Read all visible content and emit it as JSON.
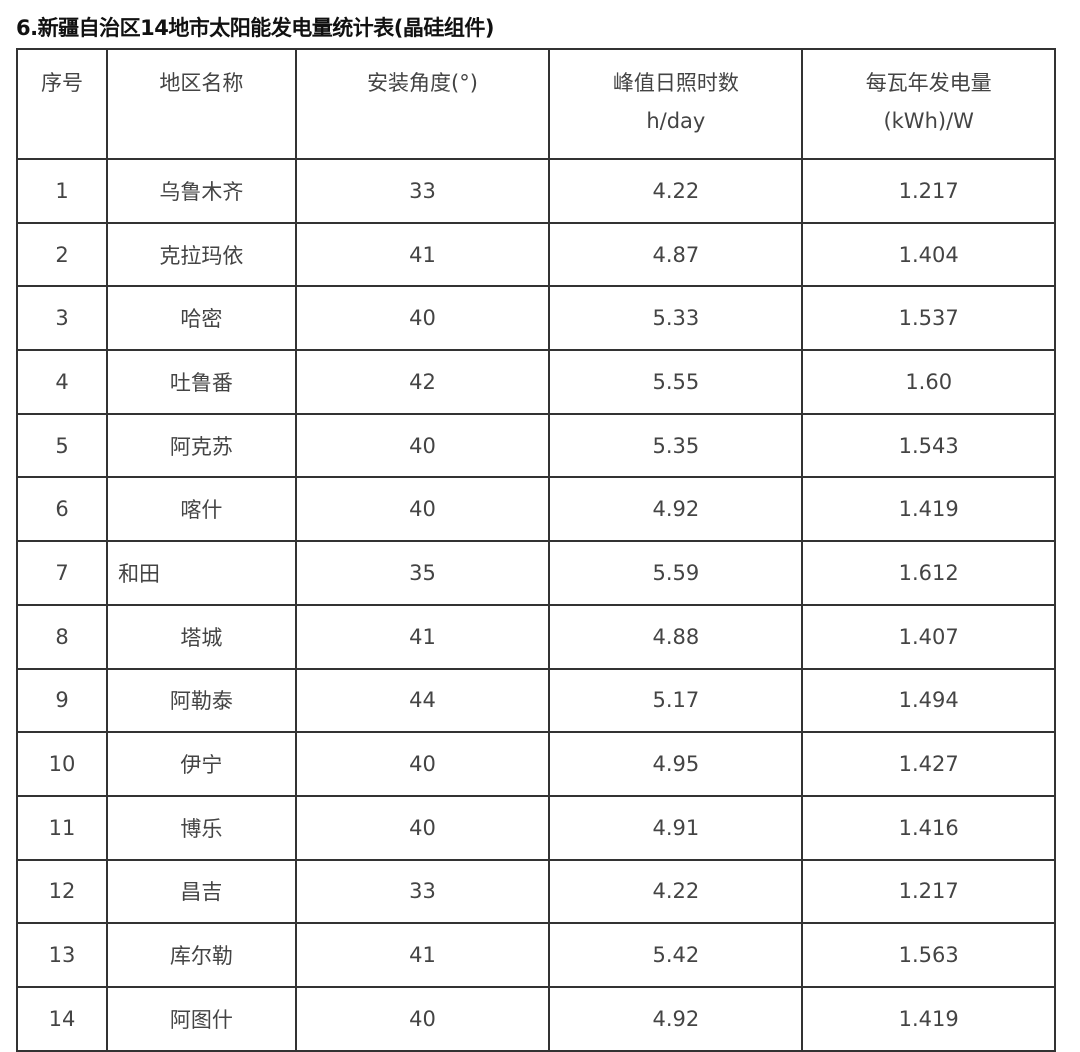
{
  "title": "6.新疆自治区14地市太阳能发电量统计表(晶硅组件)",
  "headers": [
    {
      "line1": "序号",
      "line2": ""
    },
    {
      "line1": "地区名称",
      "line2": ""
    },
    {
      "line1": "安装角度(°)",
      "line2": ""
    },
    {
      "line1": "峰值日照时数",
      "line2": "h/day"
    },
    {
      "line1": "每瓦年发电量",
      "line2": "(kWh)/W"
    }
  ],
  "rows": [
    [
      "1",
      "乌鲁木齐",
      "33",
      "4.22",
      "1.217"
    ],
    [
      "2",
      "克拉玛依",
      "41",
      "4.87",
      "1.404"
    ],
    [
      "3",
      "哈密",
      "40",
      "5.33",
      "1.537"
    ],
    [
      "4",
      "吐鲁番",
      "42",
      "5.55",
      "1.60"
    ],
    [
      "5",
      "阿克苏",
      "40",
      "5.35",
      "1.543"
    ],
    [
      "6",
      "喀什",
      "40",
      "4.92",
      "1.419"
    ],
    [
      "7",
      "和田",
      "35",
      "5.59",
      "1.612"
    ],
    [
      "8",
      "塔城",
      "41",
      "4.88",
      "1.407"
    ],
    [
      "9",
      "阿勒泰",
      "44",
      "5.17",
      "1.494"
    ],
    [
      "10",
      "伊宁",
      "40",
      "4.95",
      "1.427"
    ],
    [
      "11",
      "博乐",
      "40",
      "4.91",
      "1.416"
    ],
    [
      "12",
      "昌吉",
      "33",
      "4.22",
      "1.217"
    ],
    [
      "13",
      "库尔勒",
      "41",
      "5.42",
      "1.563"
    ],
    [
      "14",
      "阿图什",
      "40",
      "4.92",
      "1.419"
    ]
  ]
}
